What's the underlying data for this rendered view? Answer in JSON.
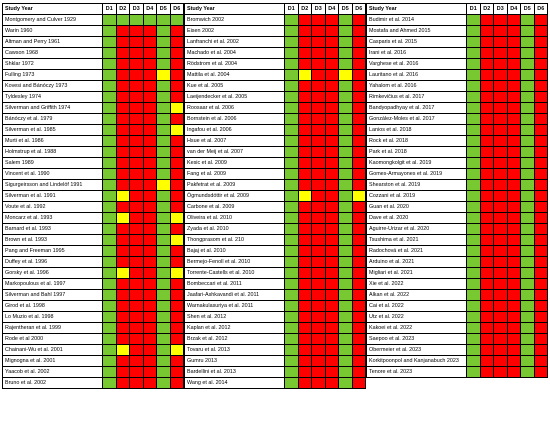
{
  "header": {
    "study": "Study Year",
    "domains": [
      "D1",
      "D2",
      "D3",
      "D4",
      "D5",
      "D6"
    ]
  },
  "colors": {
    "G": "#78c832",
    "Y": "#ffff00",
    "R": "#ff0000"
  },
  "panels": [
    {
      "rows": [
        {
          "study": "Montgomery and Culver 1929",
          "cells": "GGGGGG"
        },
        {
          "study": "Warin 1960",
          "cells": "GRRRGR"
        },
        {
          "study": "Altman and Perry 1961",
          "cells": "GRRRGR"
        },
        {
          "study": "Cawson 1968",
          "cells": "GRRRGR"
        },
        {
          "study": "Shklar 1972",
          "cells": "GRRRGR"
        },
        {
          "study": "Fulling 1973",
          "cells": "GRRRYR"
        },
        {
          "study": "Kovesi and Bánóczy 1973",
          "cells": "GRRRGR"
        },
        {
          "study": "Tyldesley 1974",
          "cells": "GRRRGR"
        },
        {
          "study": "Silverman and Griffith 1974",
          "cells": "GRRRGY"
        },
        {
          "study": "Bánóczy et al. 1979",
          "cells": "GRRRGR"
        },
        {
          "study": "Silverman et al. 1985",
          "cells": "GRRRGY"
        },
        {
          "study": "Murti et al. 1986",
          "cells": "GRRRGR"
        },
        {
          "study": "Holmstrup et al. 1988",
          "cells": "GRRRGR"
        },
        {
          "study": "Salem 1989",
          "cells": "GRRRGR"
        },
        {
          "study": "Vincent et al. 1990",
          "cells": "GRRRGR"
        },
        {
          "study": "Sigurgeirsson and Lindelöf 1991",
          "cells": "GRRRYR"
        },
        {
          "study": "Silverman et al. 1991",
          "cells": "GYRRGR"
        },
        {
          "study": "Voute et al. 1992",
          "cells": "GRRRGR"
        },
        {
          "study": "Moncarz et al. 1993",
          "cells": "GYRRGY"
        },
        {
          "study": "Barnard et al. 1993",
          "cells": "GRRRGR"
        },
        {
          "study": "Brown et al. 1993",
          "cells": "GRRRGY"
        },
        {
          "study": "Pang and Freeman 1995",
          "cells": "GRRRGR"
        },
        {
          "study": "Duffey et al. 1996",
          "cells": "GRRRGR"
        },
        {
          "study": "Gorsky et al. 1996",
          "cells": "GYRRGY"
        },
        {
          "study": "Markopoulous et al. 1997",
          "cells": "GRRRGR"
        },
        {
          "study": "Silverman and Bahl 1997",
          "cells": "GRRRGR"
        },
        {
          "study": "Girod et al. 1998",
          "cells": "GRRRGR"
        },
        {
          "study": "Lo Muzio et al. 1998",
          "cells": "GRRRGR"
        },
        {
          "study": "Rajentheran et al. 1999",
          "cells": "GRRRGR"
        },
        {
          "study": "Rode et al 2000",
          "cells": "GRRRGR"
        },
        {
          "study": "Chainani-Wu et al. 2001",
          "cells": "GYRRGY"
        },
        {
          "study": "Mignogna et al. 2001",
          "cells": "GRRRGR"
        },
        {
          "study": "Yaacob et al. 2002",
          "cells": "GRRRGR"
        },
        {
          "study": "Bruno et al. 2002",
          "cells": "GRRRGR"
        }
      ]
    },
    {
      "rows": [
        {
          "study": "Bromwich 2002",
          "cells": "GRRRGR"
        },
        {
          "study": "Eisen 2002",
          "cells": "GRRRGR"
        },
        {
          "study": "Lanfranchi et al. 2002",
          "cells": "GRRRGR"
        },
        {
          "study": "Machado et al. 2004",
          "cells": "GRRRGR"
        },
        {
          "study": "Rödstrom et al. 2004",
          "cells": "GRRRGR"
        },
        {
          "study": "Mattila et al. 2004",
          "cells": "GYRRYR"
        },
        {
          "study": "Kue et al. 2005",
          "cells": "GRRRGR"
        },
        {
          "study": "Laeijendecker et al. 2005",
          "cells": "GRRRGR"
        },
        {
          "study": "Roosaar et al. 2006",
          "cells": "GRRRGR"
        },
        {
          "study": "Bornstein et al. 2006",
          "cells": "GRRRGR"
        },
        {
          "study": "Ingafou et al. 2006",
          "cells": "GRRRGR"
        },
        {
          "study": "Hsue et al. 2007",
          "cells": "GRRRGR"
        },
        {
          "study": "van der Meij et al. 2007",
          "cells": "GRRRGR"
        },
        {
          "study": "Kesic et al. 2009",
          "cells": "GRRRGR"
        },
        {
          "study": "Fang et al. 2009",
          "cells": "GRRRGR"
        },
        {
          "study": "Pakfetrat et al. 2009",
          "cells": "GRRRGR"
        },
        {
          "study": "Ögmundsdóttir et al. 2009",
          "cells": "GYRRGY"
        },
        {
          "study": "Carbone et al. 2009",
          "cells": "GRRRGR"
        },
        {
          "study": "Oliveira et al. 2010",
          "cells": "GRRRGR"
        },
        {
          "study": "Zyada et al. 2010",
          "cells": "GRRRGR"
        },
        {
          "study": "Thongprasom et al. 210",
          "cells": "GRRRGR"
        },
        {
          "study": "Bajaj et al. 2010",
          "cells": "GRRRGR"
        },
        {
          "study": "Bermejo-Fenoll et al. 2010",
          "cells": "GRRRGR"
        },
        {
          "study": "Torrente-Castells et al. 2010",
          "cells": "GRRRGR"
        },
        {
          "study": "Bombeccari et al. 2011",
          "cells": "GRRRGR"
        },
        {
          "study": "Jaafari-Ashkavandi et al. 2011",
          "cells": "GRRRGR"
        },
        {
          "study": "Warnakulasuriya et al. 2011",
          "cells": "GRRRGR"
        },
        {
          "study": "Shen et al. 2012",
          "cells": "GRRRGR"
        },
        {
          "study": "Kaplan et al. 2012",
          "cells": "GRRRGR"
        },
        {
          "study": "Brzak et al. 2012",
          "cells": "GRRRGR"
        },
        {
          "study": "Tovaru et al. 2013",
          "cells": "GRRRGR"
        },
        {
          "study": "Gumru 2013",
          "cells": "GRRRGR"
        },
        {
          "study": "Bardellini et al. 2013",
          "cells": "GRRRGR"
        },
        {
          "study": "Wang et al. 2014",
          "cells": "GRRRGR"
        }
      ]
    },
    {
      "rows": [
        {
          "study": "Budimir et al. 2014",
          "cells": "GRRRGR"
        },
        {
          "study": "Mostafa and Ahmed 2015",
          "cells": "GRRRGR"
        },
        {
          "study": "Casparis et al. 2015",
          "cells": "GRRRGR"
        },
        {
          "study": "Irani et al. 2016",
          "cells": "GRRRGR"
        },
        {
          "study": "Varghese et al. 2016",
          "cells": "GRRRGR"
        },
        {
          "study": "Lauritano et al. 2016",
          "cells": "GRRRGR"
        },
        {
          "study": "Yahalom et al. 2016",
          "cells": "GRRRGR"
        },
        {
          "study": "Rimkevičius et al. 2017",
          "cells": "GRRRGR"
        },
        {
          "study": "Bandyopadhyay et al. 2017",
          "cells": "GRRRGR"
        },
        {
          "study": "González-Moles et al. 2017",
          "cells": "GRRRGR"
        },
        {
          "study": "Lanios et al. 2018",
          "cells": "GRRRGR"
        },
        {
          "study": "Rock et al. 2018",
          "cells": "GRRRGR"
        },
        {
          "study": "Park et al. 2018",
          "cells": "GRRRGR"
        },
        {
          "study": "Kaomongkolgit et al. 2019",
          "cells": "GRRRGR"
        },
        {
          "study": "Gomes-Armayones et al. 2019",
          "cells": "GRRRGR"
        },
        {
          "study": "Shearston et al. 2019",
          "cells": "GRRRGR"
        },
        {
          "study": "Cozzani et al. 2019",
          "cells": "GRRRGR"
        },
        {
          "study": "Guan et al. 2020",
          "cells": "GRRRGR"
        },
        {
          "study": "Dave et al. 2020",
          "cells": "GRRRGR"
        },
        {
          "study": "Aguirre-Urizar et al. 2020",
          "cells": "GRRRGR"
        },
        {
          "study": "Tsushima et al. 2021",
          "cells": "GRRRGR"
        },
        {
          "study": "Radochová et al. 2021",
          "cells": "GRRRGR"
        },
        {
          "study": "Arduino et al. 2021",
          "cells": "GRRRGR"
        },
        {
          "study": "Migliari et al. 2021",
          "cells": "GRRRGR"
        },
        {
          "study": "Xie et al. 2022",
          "cells": "GRRRGR"
        },
        {
          "study": "Alkan et al. 2022",
          "cells": "GRRRGR"
        },
        {
          "study": "Cai et al. 2022",
          "cells": "GRRRGR"
        },
        {
          "study": "Utz et al. 2022",
          "cells": "GRRRGR"
        },
        {
          "study": "Kakoei et al. 2022",
          "cells": "GRRRGR"
        },
        {
          "study": "Saepoo et al. 2023",
          "cells": "GRRRGR"
        },
        {
          "study": "Obermeier et al. 2023",
          "cells": "GRRRGR"
        },
        {
          "study": "Korkitpoonpol and Kanjanabuch 2023",
          "cells": "GRRRGR"
        },
        {
          "study": "Tenore et al. 2023",
          "cells": "GRRRGR"
        }
      ]
    }
  ]
}
